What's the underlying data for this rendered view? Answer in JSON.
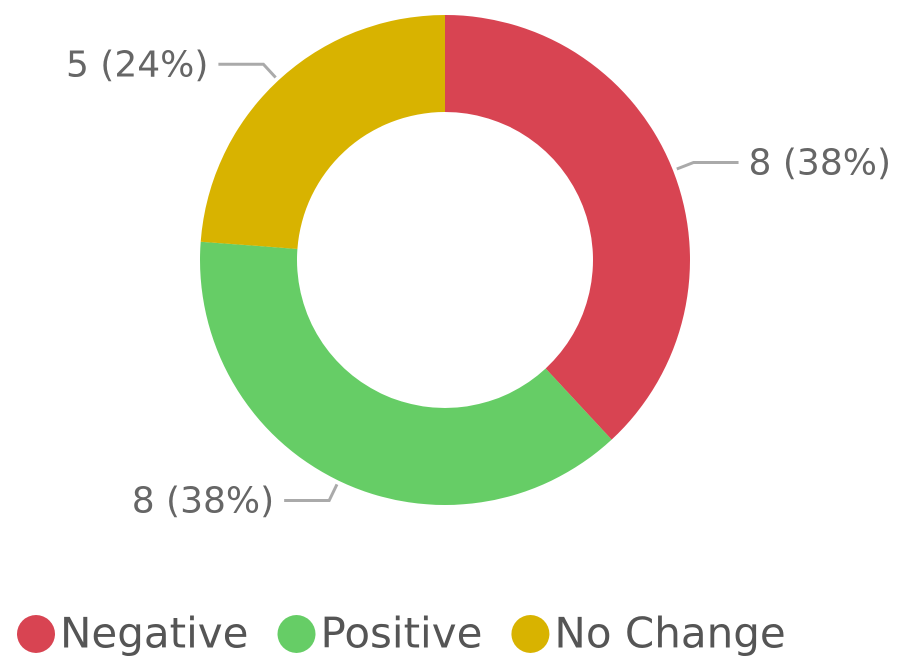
{
  "chart_data": {
    "type": "donut",
    "categories": [
      "Negative",
      "Positive",
      "No Change"
    ],
    "values": [
      8,
      8,
      5
    ],
    "value_labels": [
      "8 (38%)",
      "8 (38%)",
      "5 (24%)"
    ],
    "colors": [
      "#d84452",
      "#66cd66",
      "#d8b300"
    ],
    "legend": "bottom"
  }
}
